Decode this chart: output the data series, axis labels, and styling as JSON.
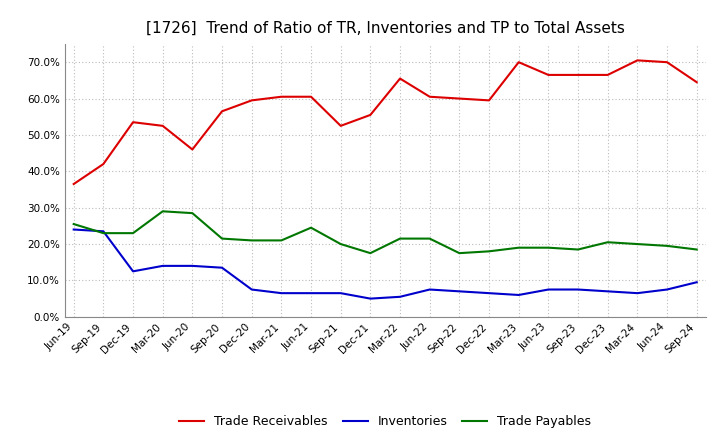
{
  "title": "[1726]  Trend of Ratio of TR, Inventories and TP to Total Assets",
  "x_labels": [
    "Jun-19",
    "Sep-19",
    "Dec-19",
    "Mar-20",
    "Jun-20",
    "Sep-20",
    "Dec-20",
    "Mar-21",
    "Jun-21",
    "Sep-21",
    "Dec-21",
    "Mar-22",
    "Jun-22",
    "Sep-22",
    "Dec-22",
    "Mar-23",
    "Jun-23",
    "Sep-23",
    "Dec-23",
    "Mar-24",
    "Jun-24",
    "Sep-24"
  ],
  "trade_receivables": [
    0.365,
    0.42,
    0.535,
    0.525,
    0.46,
    0.565,
    0.595,
    0.605,
    0.605,
    0.525,
    0.555,
    0.655,
    0.605,
    0.6,
    0.595,
    0.7,
    0.665,
    0.665,
    0.665,
    0.705,
    0.7,
    0.645
  ],
  "inventories": [
    0.24,
    0.235,
    0.125,
    0.14,
    0.14,
    0.135,
    0.075,
    0.065,
    0.065,
    0.065,
    0.05,
    0.055,
    0.075,
    0.07,
    0.065,
    0.06,
    0.075,
    0.075,
    0.07,
    0.065,
    0.075,
    0.095
  ],
  "trade_payables": [
    0.255,
    0.23,
    0.23,
    0.29,
    0.285,
    0.215,
    0.21,
    0.21,
    0.245,
    0.2,
    0.175,
    0.215,
    0.215,
    0.175,
    0.18,
    0.19,
    0.19,
    0.185,
    0.205,
    0.2,
    0.195,
    0.185
  ],
  "tr_color": "#dd0000",
  "inv_color": "#0000cc",
  "tp_color": "#007700",
  "ylim": [
    0.0,
    0.75
  ],
  "yticks": [
    0.0,
    0.1,
    0.2,
    0.3,
    0.4,
    0.5,
    0.6,
    0.7
  ],
  "legend_labels": [
    "Trade Receivables",
    "Inventories",
    "Trade Payables"
  ],
  "background_color": "#ffffff",
  "grid_color": "#bbbbbb",
  "title_fontsize": 11,
  "tick_fontsize": 7.5,
  "legend_fontsize": 9
}
